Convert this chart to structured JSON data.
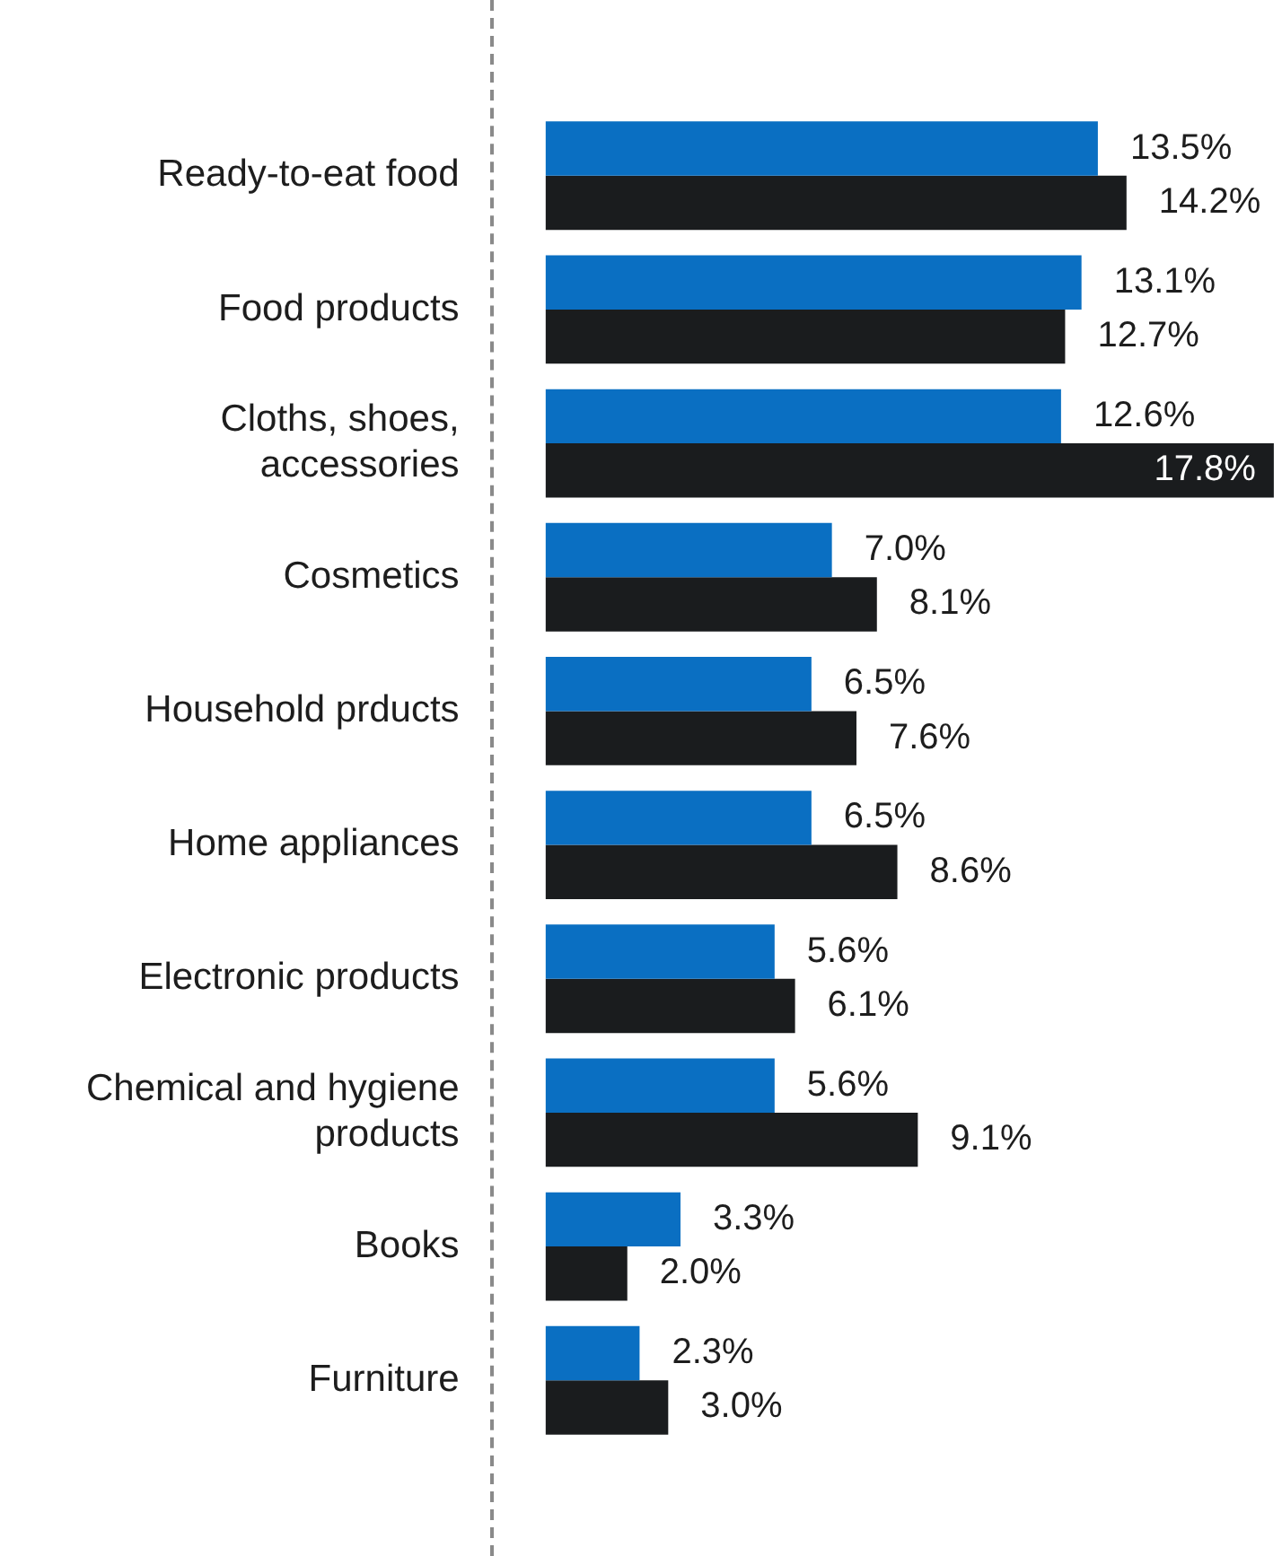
{
  "chart_data": {
    "type": "bar",
    "orientation": "horizontal",
    "grid": false,
    "legend": false,
    "tick_labels": "y",
    "categories": [
      "Ready-to-eat food",
      "Food products",
      "Cloths, shoes, accessories",
      "Cosmetics",
      "Household prducts",
      "Home appliances",
      "Electronic products",
      "Chemical and hygiene products",
      "Books",
      "Furniture"
    ],
    "series": [
      {
        "color": "#0a6fc2",
        "values": [
          13.5,
          13.1,
          12.6,
          7.0,
          6.5,
          6.5,
          5.6,
          5.6,
          3.3,
          2.3
        ],
        "value_labels": [
          "13.5%",
          "13.1%",
          "12.6%",
          "7.0%",
          "6.5%",
          "6.5%",
          "5.6%",
          "5.6%",
          "3.3%",
          "2.3%"
        ]
      },
      {
        "color": "#1a1c1e",
        "values": [
          14.2,
          12.7,
          17.8,
          8.1,
          7.6,
          8.6,
          6.1,
          9.1,
          2.0,
          3.0
        ],
        "value_labels": [
          "14.2%",
          "12.7%",
          "17.8%",
          "8.1%",
          "7.6%",
          "8.6%",
          "6.1%",
          "9.1%",
          "2.0%",
          "3.0%"
        ]
      }
    ]
  }
}
